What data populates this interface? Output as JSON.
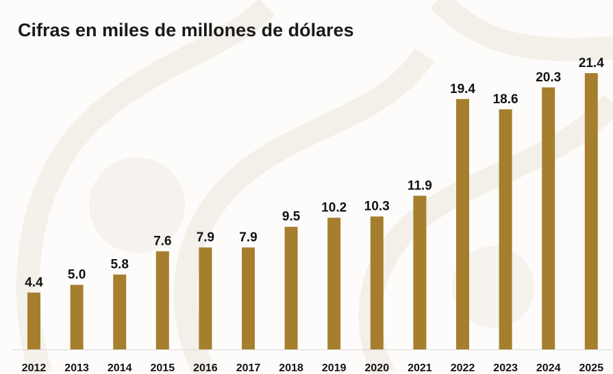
{
  "chart_data": {
    "type": "bar",
    "title": "Cifras en miles de millones de dólares",
    "categories": [
      "2012",
      "2013",
      "2014",
      "2015",
      "2016",
      "2017",
      "2018",
      "2019",
      "2020",
      "2021",
      "2022",
      "2023",
      "2024",
      "2025"
    ],
    "values": [
      4.4,
      5.0,
      5.8,
      7.6,
      7.9,
      7.9,
      9.5,
      10.2,
      10.3,
      11.9,
      19.4,
      18.6,
      20.3,
      21.4
    ],
    "value_labels": [
      "4.4",
      "5.0",
      "5.8",
      "7.6",
      "7.9",
      "7.9",
      "9.5",
      "10.2",
      "10.3",
      "11.9",
      "19.4",
      "18.6",
      "20.3",
      "21.4"
    ],
    "xlabel": "",
    "ylabel": "",
    "ylim": [
      0,
      21.4
    ],
    "grid": false,
    "legend": "none",
    "colors": {
      "bar": "#a67f2e",
      "text": "#111111",
      "axis": "#d8d8d8",
      "background": "#fdfcfa"
    }
  }
}
